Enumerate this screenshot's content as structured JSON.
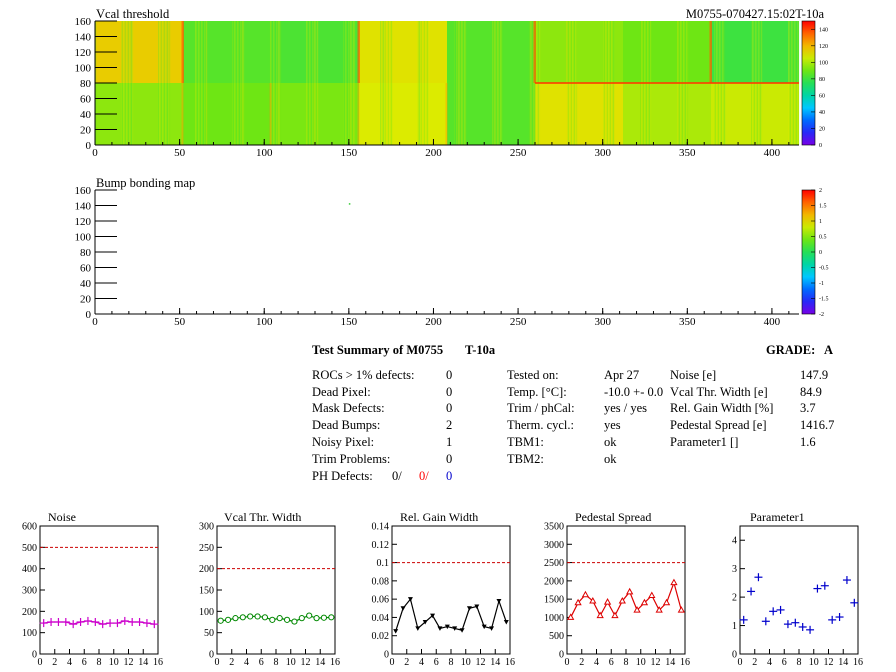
{
  "maps": [
    {
      "title": "Vcal threshold",
      "module_id": "M0755-070427.15:02T-10a",
      "x_ticks": [
        "0",
        "50",
        "100",
        "150",
        "200",
        "250",
        "300",
        "350",
        "400"
      ],
      "y_ticks": [
        "0",
        "20",
        "40",
        "60",
        "80",
        "100",
        "120",
        "140",
        "160"
      ],
      "z_ticks": [
        "0",
        "20",
        "40",
        "60",
        "80",
        "100",
        "120",
        "140"
      ]
    },
    {
      "title": "Bump bonding map",
      "x_ticks": [
        "0",
        "50",
        "100",
        "150",
        "200",
        "250",
        "300",
        "350",
        "400"
      ],
      "y_ticks": [
        "0",
        "20",
        "40",
        "60",
        "80",
        "100",
        "120",
        "140",
        "160"
      ],
      "z_ticks": [
        "-2",
        "-1.5",
        "-1",
        "-0.5",
        "0",
        "0.5",
        "1",
        "1.5",
        "2"
      ]
    }
  ],
  "summary": {
    "title": "Test Summary of M0755",
    "temp_tag": "T-10a",
    "grade_label": "GRADE:",
    "grade": "A",
    "defects": [
      {
        "label": "ROCs > 1% defects:",
        "value": "0"
      },
      {
        "label": "Dead Pixel:",
        "value": "0"
      },
      {
        "label": "Mask Defects:",
        "value": "0"
      },
      {
        "label": "Dead Bumps:",
        "value": "2"
      },
      {
        "label": "Noisy Pixel:",
        "value": "1"
      },
      {
        "label": "Trim Problems:",
        "value": "0"
      }
    ],
    "ph_label": "PH Defects:",
    "ph_values": [
      "0/",
      "0/",
      "0"
    ],
    "ph_colors": [
      "#000000",
      "#ff0000",
      "#0000cc"
    ],
    "tests": [
      {
        "label": "Tested on:",
        "value": "Apr 27"
      },
      {
        "label": "Temp. [°C]:",
        "value": "-10.0 +- 0.0"
      },
      {
        "label": "Trim / phCal:",
        "value": "yes / yes"
      },
      {
        "label": "Therm. cycl.:",
        "value": "yes"
      },
      {
        "label": "TBM1:",
        "value": "ok"
      },
      {
        "label": "TBM2:",
        "value": "ok"
      }
    ],
    "params": [
      {
        "label": "Noise [e]",
        "value": "147.9"
      },
      {
        "label": "Vcal Thr. Width [e]",
        "value": "84.9"
      },
      {
        "label": "Rel. Gain Width [%]",
        "value": "3.7"
      },
      {
        "label": "Pedestal Spread [e]",
        "value": "1416.7"
      },
      {
        "label": "Parameter1 []",
        "value": "1.6"
      }
    ]
  },
  "chart_data": [
    {
      "type": "heatmap",
      "title": "Vcal threshold",
      "x_range": [
        0,
        416
      ],
      "y_range": [
        0,
        160
      ],
      "z_range": [
        0,
        150
      ],
      "note_layout": "2 rows x 8 ROCs of 52x80 pixels",
      "roc_means_top": [
        115,
        85,
        83,
        110,
        85,
        95,
        90,
        80
      ],
      "roc_means_bottom": [
        95,
        90,
        92,
        108,
        85,
        110,
        100,
        105
      ]
    },
    {
      "type": "heatmap",
      "title": "Bump bonding map",
      "x_range": [
        0,
        416
      ],
      "y_range": [
        0,
        160
      ],
      "z_range": [
        -2,
        2
      ],
      "points": [
        {
          "x": 150,
          "y": 143
        }
      ]
    },
    {
      "type": "line",
      "title": "Noise",
      "x": [
        0,
        1,
        2,
        3,
        4,
        5,
        6,
        7,
        8,
        9,
        10,
        11,
        12,
        13,
        14,
        15
      ],
      "values": [
        145,
        150,
        150,
        150,
        140,
        150,
        155,
        150,
        140,
        145,
        145,
        155,
        150,
        150,
        145,
        140
      ],
      "limit": 500,
      "xlim": [
        0,
        16
      ],
      "ylim": [
        0,
        600
      ],
      "y_ticks": [
        "0",
        "100",
        "200",
        "300",
        "400",
        "500",
        "600"
      ],
      "x_ticks": [
        "0",
        "2",
        "4",
        "6",
        "8",
        "10",
        "12",
        "14",
        "16"
      ],
      "color": "#cc00cc",
      "marker": "cross"
    },
    {
      "type": "line",
      "title": "Vcal Thr. Width",
      "x": [
        0,
        1,
        2,
        3,
        4,
        5,
        6,
        7,
        8,
        9,
        10,
        11,
        12,
        13,
        14,
        15
      ],
      "values": [
        78,
        80,
        84,
        86,
        88,
        88,
        86,
        80,
        84,
        80,
        76,
        84,
        90,
        84,
        85,
        86
      ],
      "limit": 200,
      "xlim": [
        0,
        16
      ],
      "ylim": [
        0,
        300
      ],
      "y_ticks": [
        "0",
        "50",
        "100",
        "150",
        "200",
        "250",
        "300"
      ],
      "x_ticks": [
        "0",
        "2",
        "4",
        "6",
        "8",
        "10",
        "12",
        "14",
        "16"
      ],
      "color": "#008800",
      "marker": "circle"
    },
    {
      "type": "line",
      "title": "Rel. Gain Width",
      "x": [
        0,
        1,
        2,
        3,
        4,
        5,
        6,
        7,
        8,
        9,
        10,
        11,
        12,
        13,
        14,
        15
      ],
      "values": [
        0.025,
        0.05,
        0.06,
        0.028,
        0.035,
        0.042,
        0.028,
        0.03,
        0.028,
        0.026,
        0.05,
        0.052,
        0.03,
        0.028,
        0.058,
        0.035
      ],
      "limit": 0.1,
      "xlim": [
        0,
        16
      ],
      "ylim": [
        0,
        0.14
      ],
      "y_ticks": [
        "0",
        "0.02",
        "0.04",
        "0.06",
        "0.08",
        "0.1",
        "0.12",
        "0.14"
      ],
      "x_ticks": [
        "0",
        "2",
        "4",
        "6",
        "8",
        "10",
        "12",
        "14",
        "16"
      ],
      "color": "#000000",
      "marker": "triangle-down"
    },
    {
      "type": "line",
      "title": "Pedestal Spread",
      "x": [
        0,
        1,
        2,
        3,
        4,
        5,
        6,
        7,
        8,
        9,
        10,
        11,
        12,
        13,
        14,
        15
      ],
      "values": [
        1000,
        1400,
        1620,
        1450,
        1050,
        1420,
        1050,
        1450,
        1700,
        1200,
        1400,
        1600,
        1200,
        1400,
        1950,
        1200
      ],
      "limit": 2500,
      "xlim": [
        0,
        16
      ],
      "ylim": [
        0,
        3500
      ],
      "y_ticks": [
        "0",
        "500",
        "1000",
        "1500",
        "2000",
        "2500",
        "3000",
        "3500"
      ],
      "x_ticks": [
        "0",
        "2",
        "4",
        "6",
        "8",
        "10",
        "12",
        "14",
        "16"
      ],
      "color": "#dd0000",
      "marker": "triangle-up"
    },
    {
      "type": "scatter",
      "title": "Parameter1",
      "x": [
        0,
        1,
        2,
        3,
        4,
        5,
        6,
        7,
        8,
        9,
        10,
        11,
        12,
        13,
        14,
        15
      ],
      "values": [
        1.2,
        2.2,
        2.7,
        1.15,
        1.5,
        1.55,
        1.05,
        1.1,
        0.95,
        0.85,
        2.3,
        2.4,
        1.2,
        1.3,
        2.6,
        1.8
      ],
      "xlim": [
        0,
        16
      ],
      "ylim": [
        0,
        4.5
      ],
      "y_ticks": [
        "0",
        "1",
        "2",
        "3",
        "4"
      ],
      "x_ticks": [
        "0",
        "2",
        "4",
        "6",
        "8",
        "10",
        "12",
        "14",
        "16"
      ],
      "color": "#0000cc",
      "marker": "cross"
    }
  ]
}
